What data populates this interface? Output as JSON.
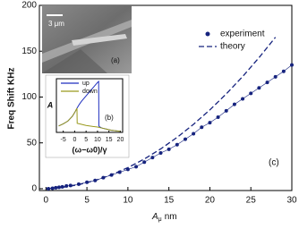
{
  "chart_data": [
    {
      "type": "line",
      "xlabel": "A",
      "xlabel_sub": "μ",
      "xlabel_unit": "nm",
      "ylabel": "Freq Shift KHz",
      "annotation": "(c)",
      "xlim": [
        -0.8,
        30
      ],
      "ylim": [
        -2,
        200
      ],
      "xticks": [
        0,
        5,
        10,
        15,
        20,
        25,
        30
      ],
      "yticks": [
        0,
        50,
        100,
        150,
        200
      ],
      "legend": "upper right",
      "series": [
        {
          "name": "experiment",
          "color": "#16237e",
          "marker": "circle",
          "dash": false,
          "x": [
            0.3,
            0.8,
            1.2,
            1.6,
            2.0,
            2.5,
            3,
            4,
            5,
            6,
            7,
            8,
            9,
            10,
            11,
            12,
            13,
            14,
            15,
            16,
            17,
            18,
            19,
            20,
            21,
            22,
            23,
            24,
            25,
            26,
            27,
            28,
            29,
            30
          ],
          "values": [
            0,
            0.5,
            1,
            1.5,
            2,
            3,
            3.5,
            5,
            7,
            9,
            12,
            15,
            18,
            21,
            24,
            29,
            34,
            39,
            43,
            48,
            54,
            60,
            67,
            72,
            78,
            85,
            92,
            98,
            104,
            110,
            116,
            122,
            128,
            135
          ]
        },
        {
          "name": "theory",
          "color": "#16237e",
          "dash": true,
          "x": [
            0,
            2,
            4,
            6,
            8,
            10,
            12,
            14,
            16,
            18,
            20,
            22,
            24,
            26,
            28
          ],
          "values": [
            0,
            1.4,
            4.4,
            9,
            15.2,
            23,
            32.4,
            43.4,
            56,
            70.2,
            86,
            103.4,
            122.4,
            143,
            165.2
          ]
        }
      ]
    },
    {
      "type": "line",
      "xlabel": "(ω−ω0)/γ",
      "ylabel": "A",
      "annotation": "(b)",
      "xlim": [
        -8,
        21
      ],
      "ylim": [
        0,
        1
      ],
      "xticks": [
        -5,
        0,
        5,
        10,
        15,
        20
      ],
      "legend": "upper left",
      "series": [
        {
          "name": "up",
          "color": "#1f2fbf",
          "dash": false,
          "x": [
            -7,
            -5,
            -3,
            -1,
            0,
            1,
            2,
            3,
            4,
            5,
            6,
            7,
            8,
            9,
            10,
            10.5,
            10.6,
            11,
            12,
            14,
            16,
            18,
            20
          ],
          "values": [
            0.12,
            0.16,
            0.21,
            0.3,
            0.37,
            0.45,
            0.52,
            0.58,
            0.63,
            0.68,
            0.73,
            0.78,
            0.83,
            0.88,
            0.93,
            0.95,
            0.12,
            0.1,
            0.08,
            0.06,
            0.04,
            0.03,
            0.02
          ]
        },
        {
          "name": "down",
          "color": "#9a9a1e",
          "dash": false,
          "x": [
            -7,
            -5,
            -3,
            -1,
            0,
            1,
            1.1,
            2,
            3,
            5,
            8,
            10,
            12,
            14,
            16,
            18,
            20
          ],
          "values": [
            0.12,
            0.16,
            0.21,
            0.3,
            0.37,
            0.45,
            0.17,
            0.16,
            0.15,
            0.13,
            0.11,
            0.1,
            0.08,
            0.06,
            0.04,
            0.03,
            0.02
          ]
        }
      ]
    }
  ],
  "image_inset": {
    "scale_label": "3 μm",
    "label": "(a)"
  }
}
